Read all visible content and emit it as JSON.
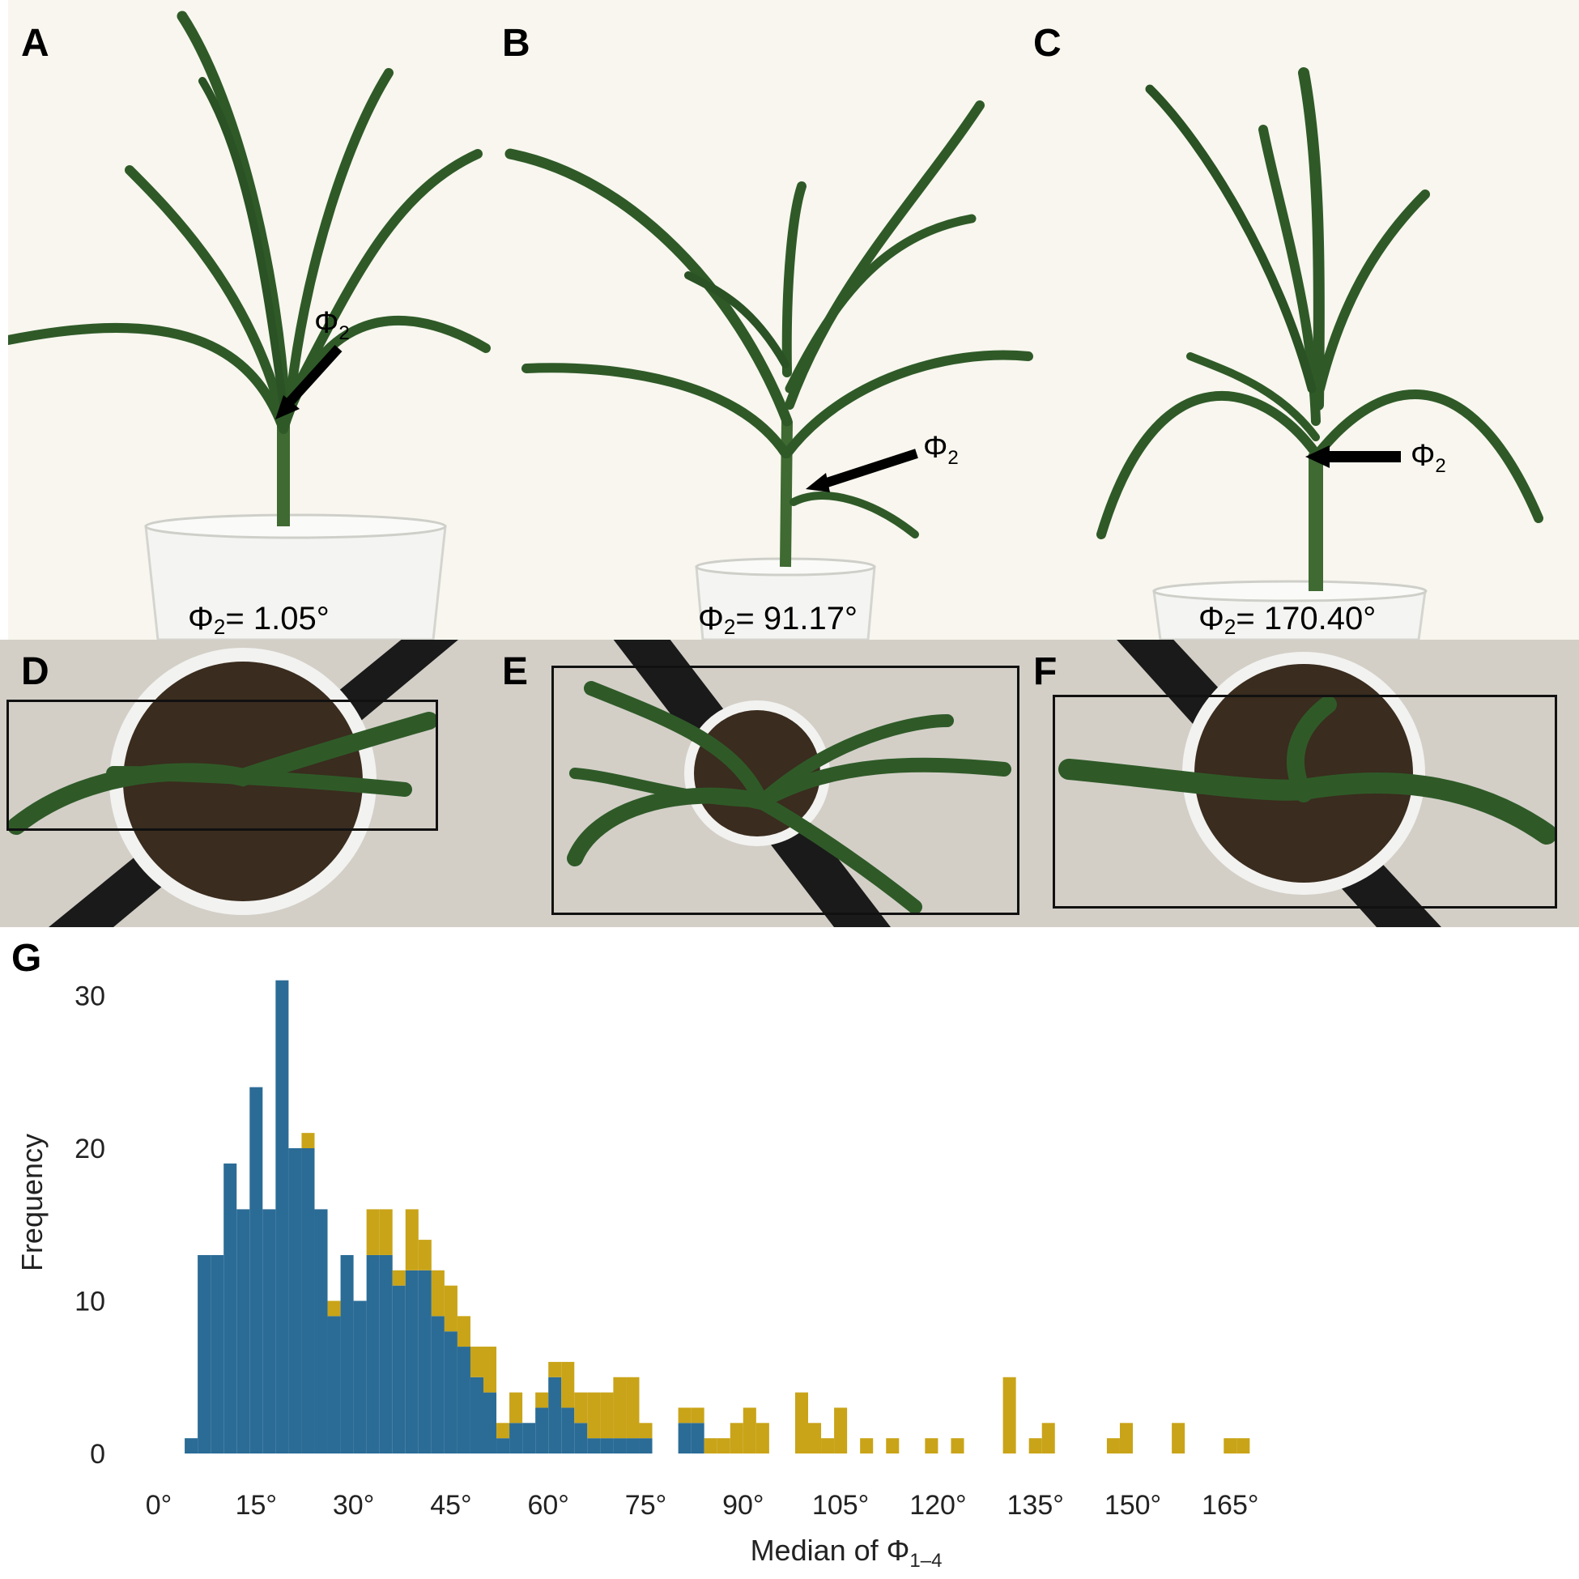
{
  "panels": {
    "A": {
      "letter": "A",
      "phi_label": "Φ",
      "phi_sub": "2",
      "caption_prefix": "Φ",
      "caption_sub": "2",
      "caption_value": "= 1.05°"
    },
    "B": {
      "letter": "B",
      "phi_label": "Φ",
      "phi_sub": "2",
      "caption_prefix": "Φ",
      "caption_sub": "2",
      "caption_value": "= 91.17°"
    },
    "C": {
      "letter": "C",
      "phi_label": "Φ",
      "phi_sub": "2",
      "caption_prefix": "Φ",
      "caption_sub": "2",
      "caption_value": "= 170.40°"
    },
    "D": {
      "letter": "D"
    },
    "E": {
      "letter": "E"
    },
    "F": {
      "letter": "F"
    },
    "G": {
      "letter": "G"
    }
  },
  "colors": {
    "blue": "#2b6c96",
    "gold": "#c9a418",
    "leaf": "#2f5a28",
    "stem": "#3f6a32",
    "pot": "#f2f2f0",
    "soil": "#3a2c1e"
  },
  "icons": [
    "arrow-icon"
  ],
  "chart_data": {
    "type": "bar",
    "subtype": "stacked-histogram",
    "xlabel": "Median of Φ",
    "xlabel_sub": "1–4",
    "ylabel": "Frequency",
    "xlim": [
      0,
      170
    ],
    "ylim": [
      0,
      31
    ],
    "x_ticks": [
      0,
      15,
      30,
      45,
      60,
      75,
      90,
      105,
      120,
      135,
      150,
      165
    ],
    "x_tick_labels": [
      "0°",
      "15°",
      "30°",
      "45°",
      "60°",
      "75°",
      "90°",
      "105°",
      "120°",
      "135°",
      "150°",
      "165°"
    ],
    "y_ticks": [
      0,
      10,
      20,
      30
    ],
    "y_tick_labels": [
      "0",
      "10",
      "20",
      "30"
    ],
    "bin_width": 2,
    "bin_starts": [
      4,
      6,
      8,
      10,
      12,
      14,
      16,
      18,
      20,
      22,
      24,
      26,
      28,
      30,
      32,
      34,
      36,
      38,
      40,
      42,
      44,
      46,
      48,
      50,
      52,
      54,
      56,
      58,
      60,
      62,
      64,
      66,
      68,
      70,
      72,
      74,
      76,
      78,
      80,
      82,
      84,
      86,
      88,
      90,
      92,
      94,
      96,
      98,
      100,
      102,
      104,
      106,
      108,
      110,
      112,
      114,
      116,
      118,
      120,
      122,
      124,
      126,
      128,
      130,
      132,
      134,
      136,
      138,
      140,
      142,
      144,
      146,
      148,
      150,
      152,
      154,
      156,
      158,
      160,
      162,
      164,
      166
    ],
    "series": [
      {
        "values": [
          1,
          13,
          13,
          19,
          16,
          24,
          16,
          31,
          20,
          20,
          16,
          9,
          13,
          10,
          13,
          13,
          11,
          12,
          12,
          9,
          8,
          7,
          5,
          4,
          1,
          2,
          2,
          3,
          5,
          3,
          2,
          1,
          1,
          1,
          1,
          1,
          0,
          0,
          2,
          2,
          0,
          0,
          0,
          0,
          0,
          0,
          0,
          0,
          0,
          0,
          0,
          0,
          0,
          0,
          0,
          0,
          0,
          0,
          0,
          0,
          0,
          0,
          0,
          0,
          0,
          0,
          0,
          0,
          0,
          0,
          0,
          0,
          0,
          0,
          0,
          0,
          0,
          0,
          0,
          0,
          0,
          0
        ]
      },
      {
        "values": [
          0,
          0,
          0,
          0,
          0,
          0,
          0,
          0,
          0,
          1,
          0,
          1,
          0,
          0,
          3,
          3,
          1,
          4,
          2,
          3,
          3,
          2,
          2,
          3,
          1,
          2,
          0,
          1,
          1,
          3,
          2,
          3,
          3,
          4,
          4,
          1,
          0,
          0,
          1,
          1,
          1,
          1,
          2,
          3,
          2,
          0,
          0,
          4,
          2,
          1,
          3,
          0,
          1,
          0,
          1,
          0,
          0,
          1,
          0,
          1,
          0,
          0,
          0,
          5,
          0,
          1,
          2,
          0,
          0,
          0,
          0,
          1,
          2,
          0,
          0,
          0,
          2,
          0,
          0,
          0,
          1,
          1
        ]
      }
    ]
  }
}
